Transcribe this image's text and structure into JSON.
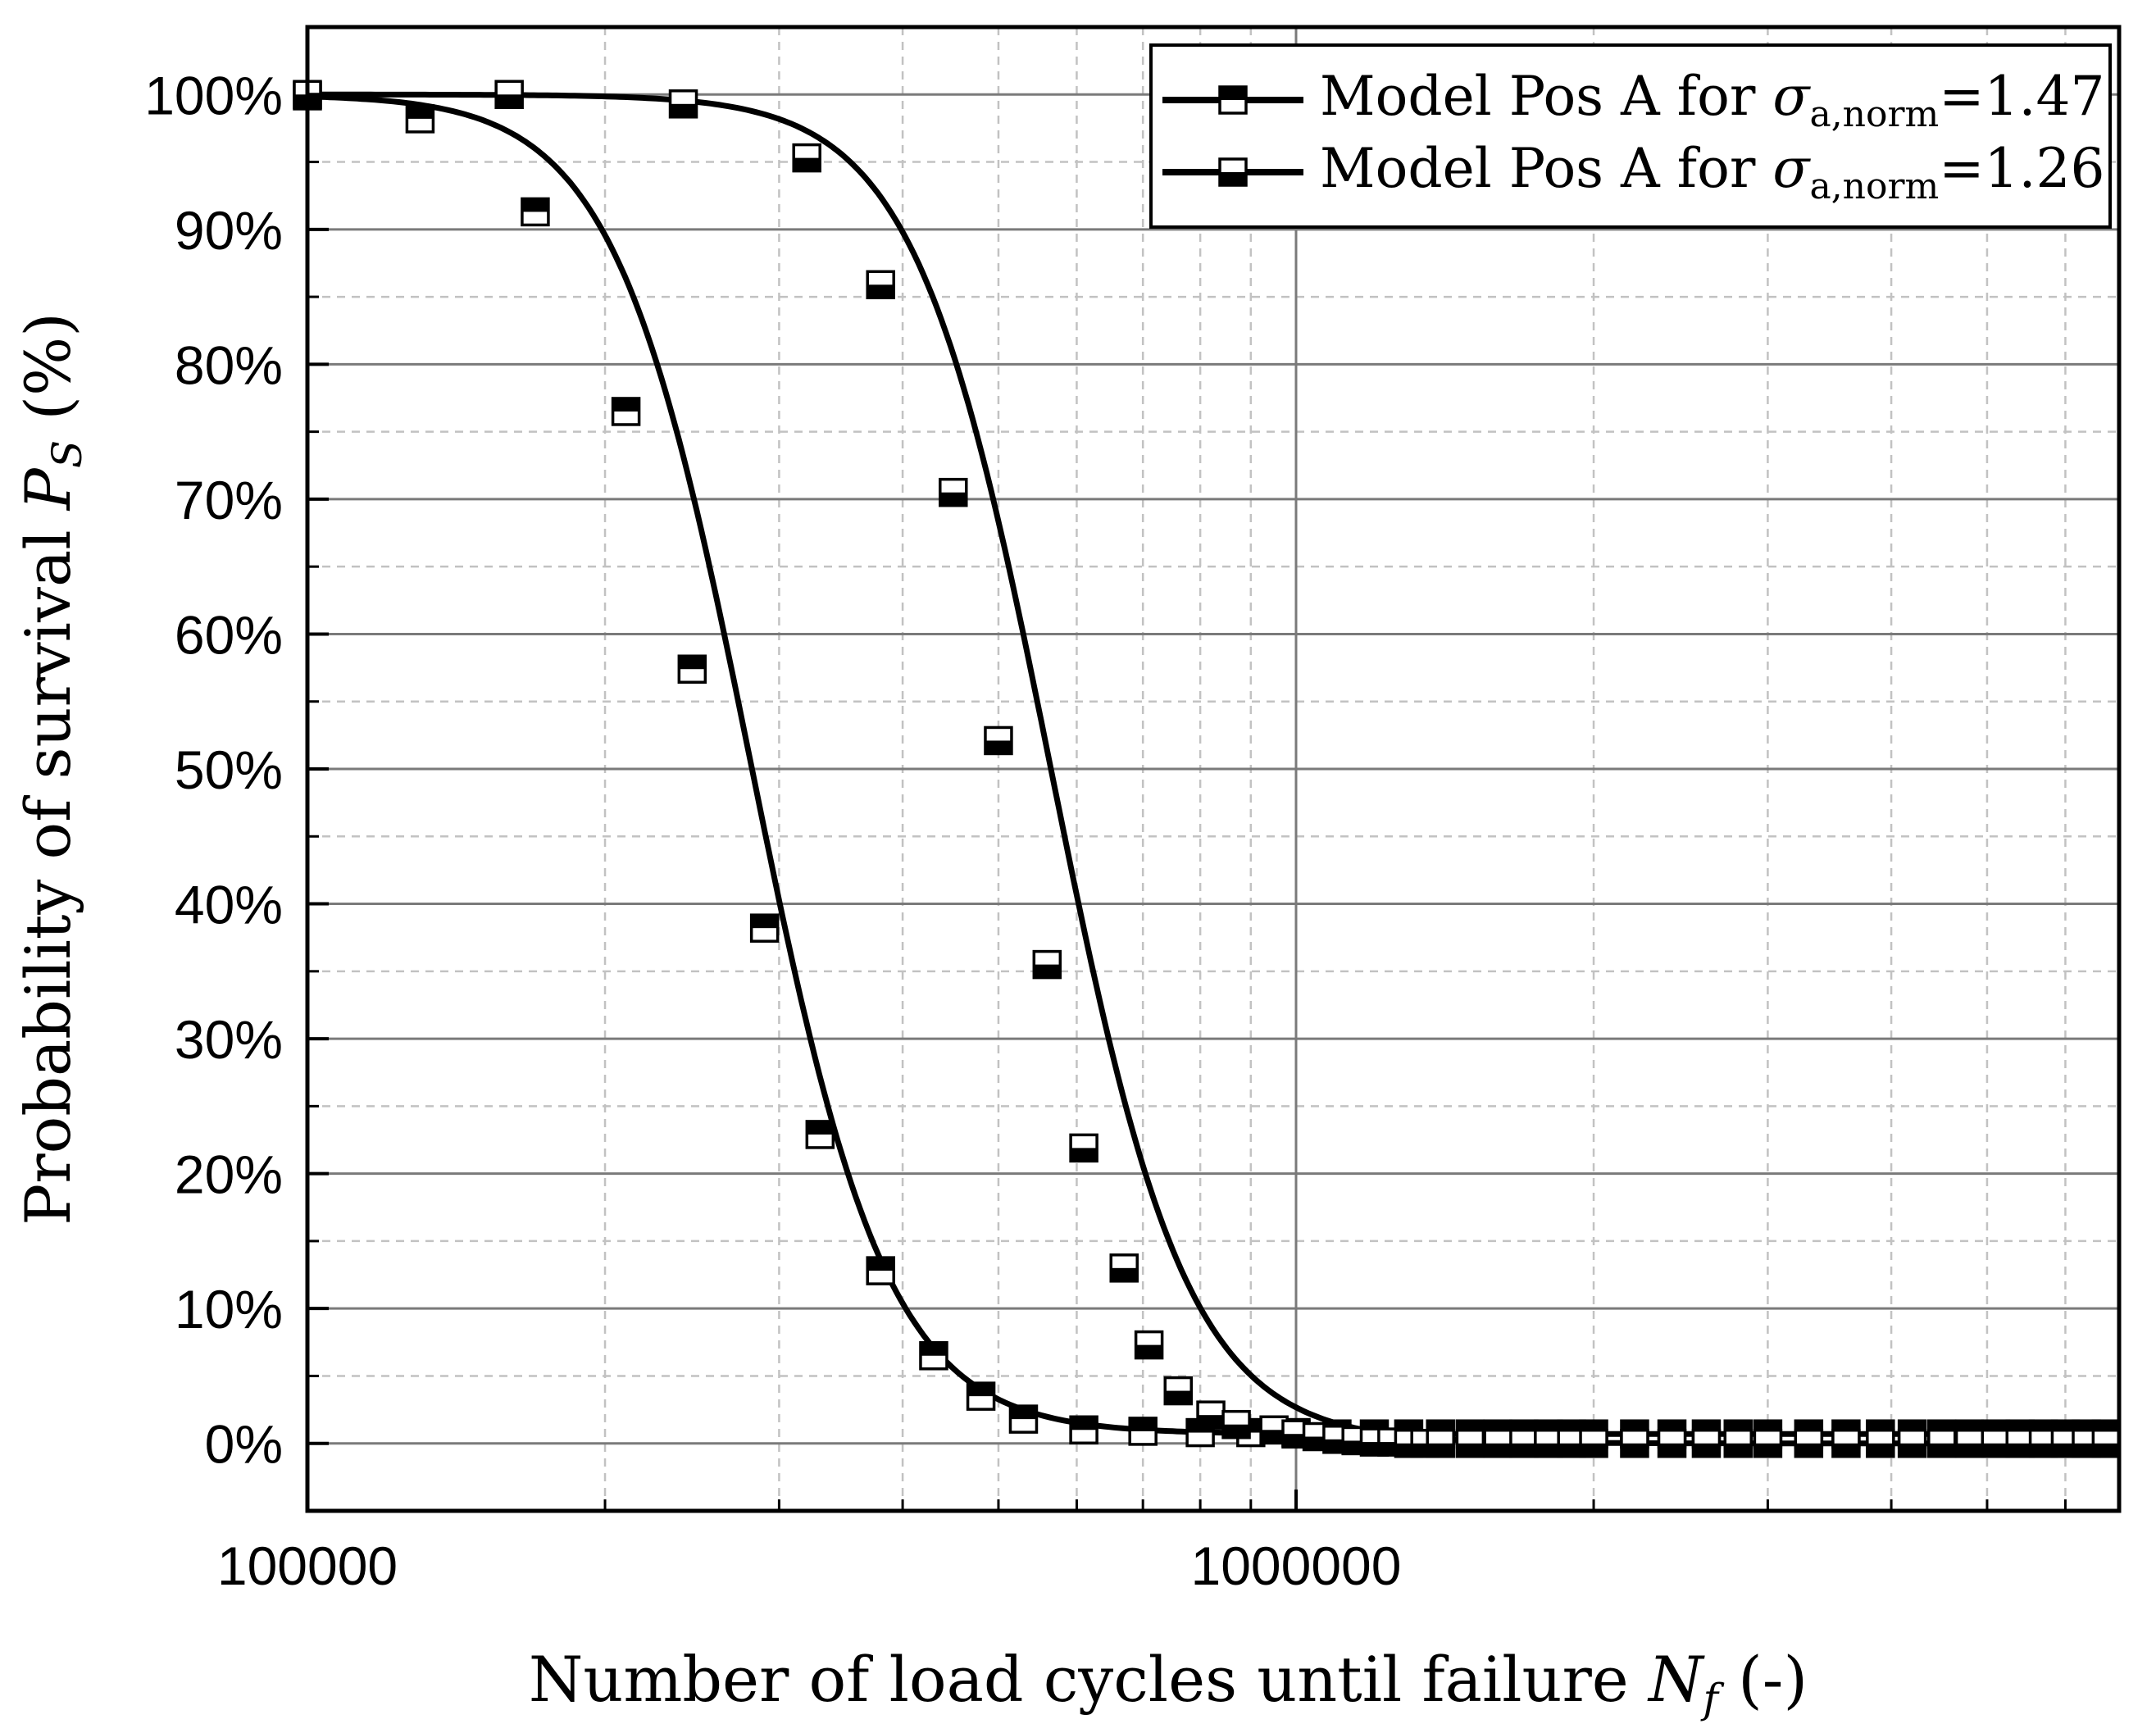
{
  "chart_data": {
    "type": "line",
    "xscale": "log",
    "title": "",
    "xlabel_prefix": "Number of load cycles until failure ",
    "xlabel_symbol": "N",
    "xlabel_sub": "f",
    "xlabel_suffix": " (-)",
    "ylabel_prefix": "Probability of survival ",
    "ylabel_symbol": "P",
    "ylabel_sub": "S",
    "ylabel_suffix": " (%)",
    "xlim": [
      100000,
      6800000
    ],
    "ylim": [
      -5,
      105
    ],
    "y_ticks": [
      0,
      10,
      20,
      30,
      40,
      50,
      60,
      70,
      80,
      90,
      100
    ],
    "y_tick_labels": [
      "0%",
      "10%",
      "20%",
      "30%",
      "40%",
      "50%",
      "60%",
      "70%",
      "80%",
      "90%",
      "100%"
    ],
    "x_tick_values": [
      100000,
      1000000
    ],
    "x_tick_labels": [
      "100000",
      "1000000"
    ],
    "grid": true,
    "legend_position": "top-right",
    "series": [
      {
        "name": "Model Pos A for σa,norm=1.47",
        "legend_prefix": "Model Pos A for ",
        "legend_sigma": "σ",
        "legend_sub": "a,norm",
        "legend_value": "=1.47",
        "marker": "half-filled-square-top-filled",
        "median": 281000,
        "slope": 6.3,
        "floor": 0.7,
        "x": [
          100000,
          130000,
          170000,
          210000,
          245000,
          290000,
          330000,
          380000,
          430000,
          480000,
          530000,
          610000,
          700000,
          800000,
          900000,
          1000000,
          1100000,
          1200000,
          1300000,
          1400000,
          1500000,
          1600000,
          1700000,
          1800000,
          1900000,
          2000000,
          2200000,
          2400000,
          2600000,
          2800000,
          3000000,
          3300000,
          3600000,
          3900000,
          4200000,
          4500000,
          4800000,
          5100000,
          5400000,
          5700000,
          6000000,
          6300000,
          6600000
        ],
        "values": [
          99.9,
          98.2,
          91.3,
          76.5,
          57.4,
          38.2,
          22.9,
          12.8,
          6.5,
          3.5,
          1.8,
          1.0,
          0.9,
          0.8,
          0.8,
          0.8,
          0.7,
          0.7,
          0.7,
          0.7,
          0.7,
          0.7,
          0.7,
          0.7,
          0.7,
          0.7,
          0.7,
          0.7,
          0.7,
          0.7,
          0.7,
          0.7,
          0.7,
          0.7,
          0.7,
          0.7,
          0.7,
          0.7,
          0.7,
          0.7,
          0.7,
          0.7,
          0.7
        ]
      },
      {
        "name": "Model Pos A for σa,norm=1.26",
        "legend_prefix": "Model Pos A for ",
        "legend_sigma": "σ",
        "legend_sub": "a,norm",
        "legend_value": "=1.26",
        "marker": "half-filled-square-bottom-filled",
        "median": 565000,
        "slope": 6.3,
        "floor": 0,
        "x": [
          100000,
          160000,
          240000,
          320000,
          380000,
          450000,
          500000,
          560000,
          610000,
          670000,
          710000,
          760000,
          820000,
          870000,
          950000,
          1000000,
          1050000,
          1100000,
          1150000,
          1200000,
          1250000,
          1300000,
          1350000,
          1400000,
          1500000,
          1600000,
          1700000,
          1800000,
          1900000,
          2000000,
          2200000,
          2400000,
          2600000,
          2800000,
          3000000,
          3300000,
          3600000,
          3900000,
          4200000,
          4500000,
          4800000,
          5100000,
          5400000,
          5700000,
          6000000,
          6300000,
          6600000
        ],
        "values": [
          100.0,
          100.0,
          99.3,
          95.3,
          85.9,
          70.5,
          52.1,
          35.5,
          21.9,
          13.0,
          7.3,
          3.9,
          2.1,
          1.4,
          1.0,
          0.7,
          0.5,
          0.3,
          0.2,
          0.1,
          0.1,
          0.0,
          0.0,
          0.0,
          0.0,
          0.0,
          0.0,
          0.0,
          0.0,
          0.0,
          0.0,
          0.0,
          0.0,
          0.0,
          0.0,
          0.0,
          0.0,
          0.0,
          0.0,
          0.0,
          0.0,
          0.0,
          0.0,
          0.0,
          0.0,
          0.0,
          0.0
        ]
      }
    ]
  }
}
